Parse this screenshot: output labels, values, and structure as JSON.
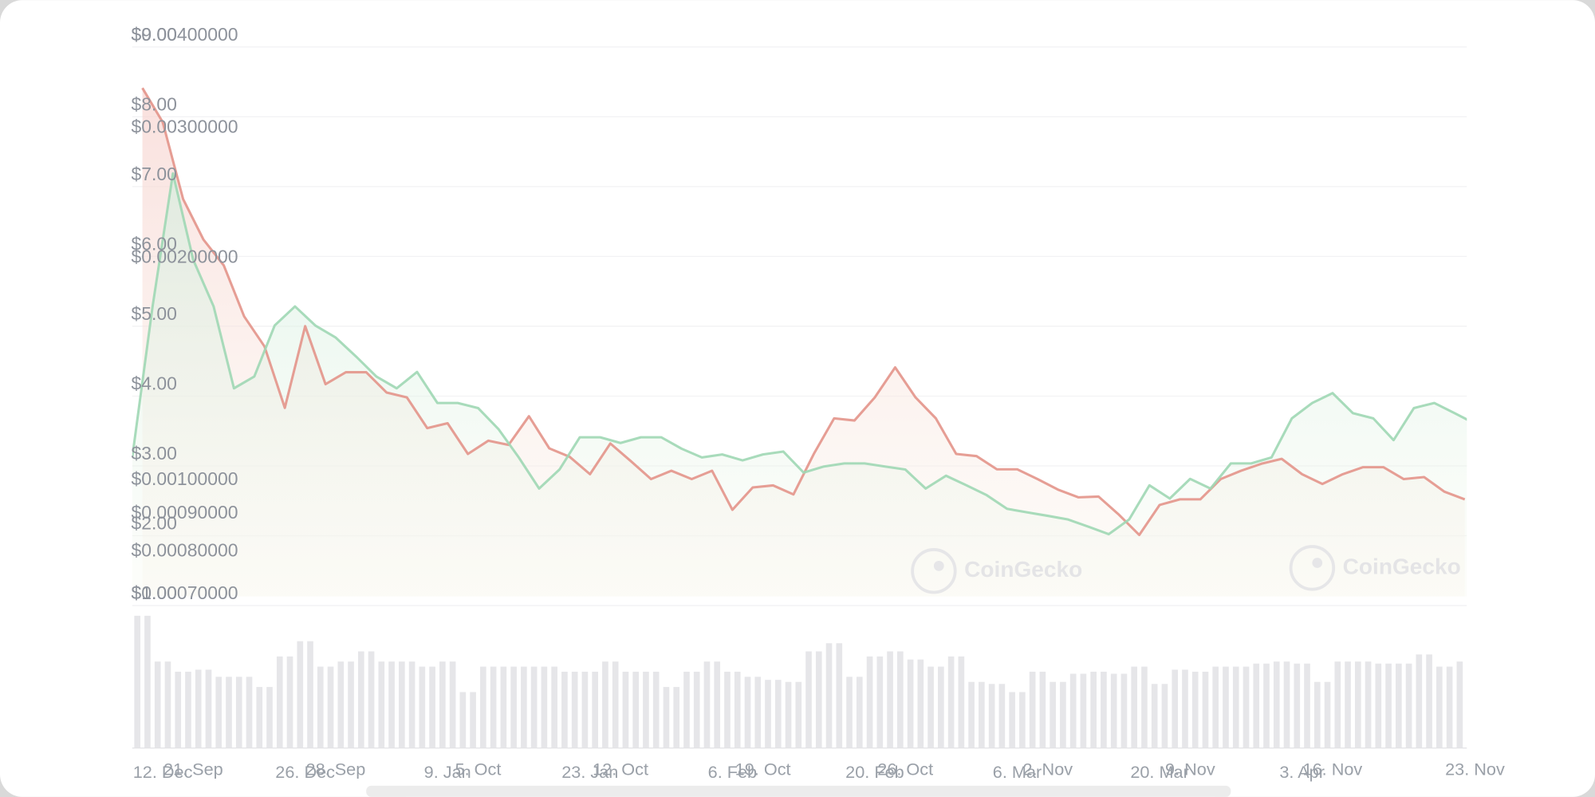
{
  "chart_data": [
    {
      "type": "line",
      "color": "#e3948a",
      "grid": true,
      "watermark": "CoinGecko",
      "categories": [
        null,
        "12. Dec",
        null,
        null,
        null,
        null,
        null,
        null,
        "26. Dec",
        null,
        null,
        null,
        null,
        null,
        null,
        "9. Jan",
        null,
        null,
        null,
        null,
        null,
        null,
        "23. Jan",
        null,
        null,
        null,
        null,
        null,
        null,
        "6. Feb",
        null,
        null,
        null,
        null,
        null,
        null,
        "20. Feb",
        null,
        null,
        null,
        null,
        null,
        null,
        "6. Mar",
        null,
        null,
        null,
        null,
        null,
        null,
        "20. Mar",
        null,
        null,
        null,
        null,
        null,
        null,
        "3. Apr",
        null,
        null,
        null,
        null,
        null,
        null,
        null,
        null
      ],
      "values": [
        8.28,
        7.79,
        6.69,
        6.11,
        5.74,
        5.01,
        4.58,
        3.7,
        4.87,
        4.04,
        4.21,
        4.21,
        3.92,
        3.85,
        3.41,
        3.48,
        3.04,
        3.23,
        3.17,
        3.58,
        3.12,
        3.0,
        2.75,
        3.19,
        2.94,
        2.68,
        2.8,
        2.68,
        2.8,
        2.24,
        2.56,
        2.59,
        2.46,
        3.04,
        3.55,
        3.52,
        3.85,
        4.28,
        3.85,
        3.55,
        3.04,
        3.01,
        2.82,
        2.82,
        2.68,
        2.53,
        2.42,
        2.43,
        2.17,
        1.88,
        2.31,
        2.39,
        2.39,
        2.68,
        2.8,
        2.9,
        2.97,
        2.75,
        2.61,
        2.75,
        2.85,
        2.85,
        2.68,
        2.71,
        2.5,
        2.39
      ],
      "volume": [
        130,
        85,
        75,
        77,
        70,
        70,
        60,
        90,
        105,
        80,
        85,
        95,
        85,
        85,
        80,
        85,
        55,
        80,
        80,
        80,
        80,
        75,
        75,
        85,
        75,
        75,
        60,
        75,
        85,
        75,
        70,
        67,
        65,
        95,
        103,
        70,
        90,
        95,
        87,
        80,
        90,
        65,
        63,
        55,
        75,
        65,
        73,
        75,
        73,
        80,
        63,
        77,
        75,
        80,
        80,
        83,
        85,
        83,
        65,
        85,
        85,
        83,
        83,
        92,
        80,
        85
      ],
      "volume_color": "#e6e6e9",
      "volume_ylim": [
        0,
        135
      ],
      "ylim": [
        1,
        9
      ],
      "yticks": [
        {
          "value": 9,
          "label": "$9.00"
        },
        {
          "value": 8,
          "label": "$8.00"
        },
        {
          "value": 7,
          "label": "$7.00"
        },
        {
          "value": 6,
          "label": "$6.00"
        },
        {
          "value": 5,
          "label": "$5.00"
        },
        {
          "value": 4,
          "label": "$4.00"
        },
        {
          "value": 3,
          "label": "$3.00"
        },
        {
          "value": 2,
          "label": "$2.00"
        },
        {
          "value": 1,
          "label": "$1.00"
        }
      ]
    },
    {
      "type": "line",
      "color": "#9fd7b4",
      "grid": false,
      "log_scale": true,
      "watermark": "CoinGecko",
      "categories": [
        null,
        null,
        null,
        "21. Sep",
        null,
        null,
        null,
        null,
        null,
        null,
        "28. Sep",
        null,
        null,
        null,
        null,
        null,
        null,
        "5. Oct",
        null,
        null,
        null,
        null,
        null,
        null,
        "12. Oct",
        null,
        null,
        null,
        null,
        null,
        null,
        "19. Oct",
        null,
        null,
        null,
        null,
        null,
        null,
        "26. Oct",
        null,
        null,
        null,
        null,
        null,
        null,
        "2. Nov",
        null,
        null,
        null,
        null,
        null,
        null,
        "9. Nov",
        null,
        null,
        null,
        null,
        null,
        null,
        "16. Nov",
        null,
        null,
        null,
        null,
        null,
        null,
        "23. Nov"
      ],
      "values": [
        0.00108,
        0.00173,
        0.00262,
        0.002,
        0.00173,
        0.00134,
        0.00139,
        0.00163,
        0.00173,
        0.00163,
        0.00157,
        0.00148,
        0.00139,
        0.00134,
        0.00141,
        0.00128,
        0.00128,
        0.00126,
        0.00118,
        0.00108,
        0.00098,
        0.00104,
        0.00115,
        0.00115,
        0.00113,
        0.00115,
        0.00115,
        0.00111,
        0.00108,
        0.00109,
        0.00107,
        0.00109,
        0.0011,
        0.00103,
        0.00105,
        0.00106,
        0.00106,
        0.00105,
        0.00104,
        0.00098,
        0.00102,
        0.00099,
        0.00096,
        0.00092,
        0.00091,
        0.0009,
        0.00089,
        0.00087,
        0.00085,
        0.00089,
        0.00099,
        0.00095,
        0.00101,
        0.00098,
        0.00106,
        0.00106,
        0.00108,
        0.00122,
        0.00128,
        0.00132,
        0.00124,
        0.00122,
        0.00114,
        0.00126,
        0.00128,
        0.00124,
        0.0012
      ],
      "ylim": [
        0.0007,
        0.004
      ],
      "yticks": [
        {
          "value": 0.004,
          "label": "$0.00400000"
        },
        {
          "value": 0.003,
          "label": "$0.00300000"
        },
        {
          "value": 0.002,
          "label": "$0.00200000"
        },
        {
          "value": 0.001,
          "label": "$0.00100000"
        },
        {
          "value": 0.0009,
          "label": "$0.00090000"
        },
        {
          "value": 0.0008,
          "label": "$0.00080000"
        },
        {
          "value": 0.0007,
          "label": "$0.00070000"
        }
      ]
    }
  ]
}
